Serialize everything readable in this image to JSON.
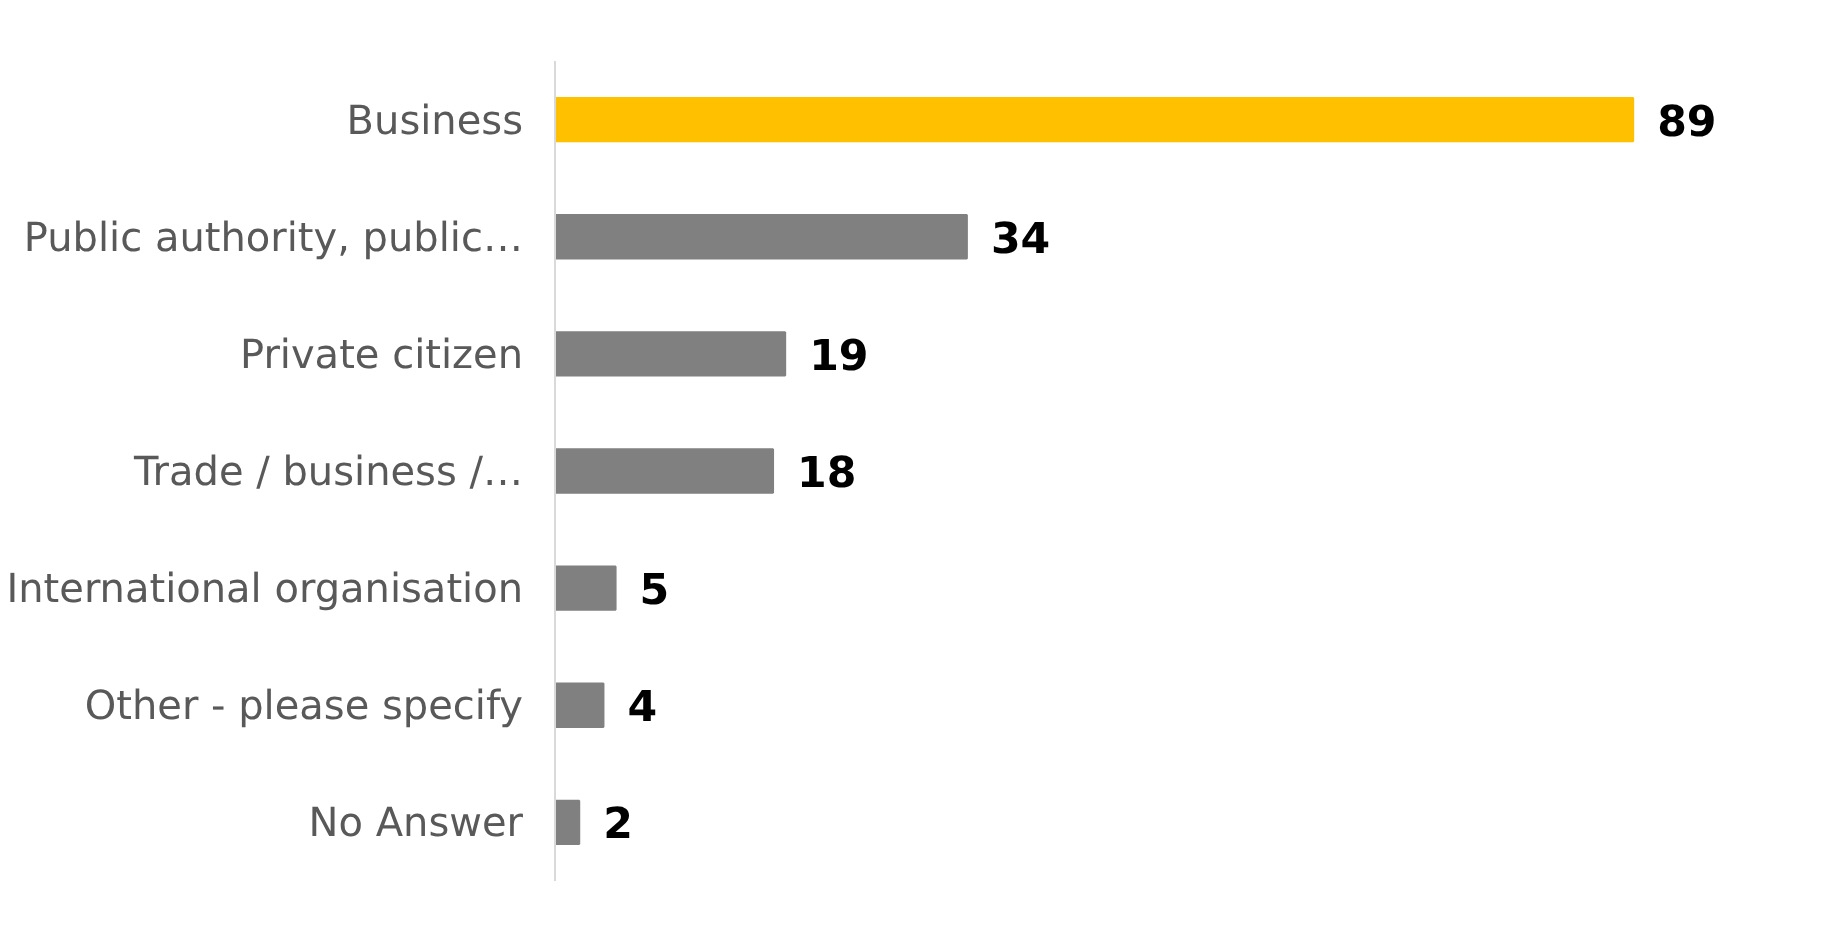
{
  "chart_data": {
    "type": "bar",
    "orientation": "horizontal",
    "categories": [
      "Business",
      "Public authority, public…",
      "Private citizen",
      "Trade / business /…",
      "International organisation",
      "Other - please specify",
      "No Answer"
    ],
    "values": [
      89,
      34,
      19,
      18,
      5,
      4,
      2
    ],
    "colors": [
      "#ffc000",
      "#808080",
      "#808080",
      "#808080",
      "#808080",
      "#808080",
      "#808080"
    ],
    "data_labels": true
  }
}
